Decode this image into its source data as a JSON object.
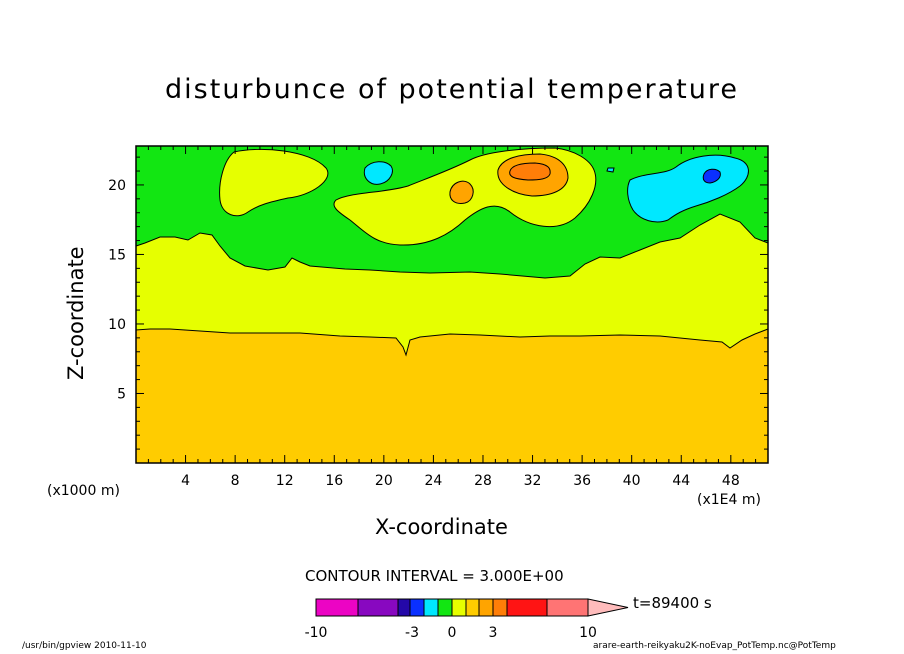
{
  "chart_data": {
    "type": "heatmap",
    "title": "disturbunce of potential temperature",
    "xlabel": "X-coordinate",
    "ylabel": "Z-coordinate",
    "x_unit_left": "(x1000 m)",
    "x_unit_right": "(x1E4 m)",
    "xlim": [
      0,
      51
    ],
    "ylim": [
      0,
      22.8
    ],
    "x_ticks": [
      "4",
      "8",
      "12",
      "16",
      "20",
      "24",
      "28",
      "32",
      "36",
      "40",
      "44",
      "48"
    ],
    "y_ticks": [
      "5",
      "10",
      "15",
      "20"
    ],
    "contour_interval": "CONTOUR INTERVAL = 3.000E+00",
    "time_label": "t=89400 s",
    "colorbar": {
      "tick_labels": [
        "-10",
        "-3",
        "0",
        "3",
        "10"
      ],
      "colors": [
        "#ec04c4",
        "#8808c0",
        "#2408a8",
        "#0a30ff",
        "#00e8ff",
        "#12e612",
        "#e6ff00",
        "#ffcc00",
        "#ffa400",
        "#ff7e08",
        "#ff1414",
        "#ff7474",
        "#ffbcbc"
      ]
    },
    "regions": [
      {
        "level": "0 to 3",
        "color": "#ffcc00"
      },
      {
        "level": "-3 to 0",
        "color": "#e6ff00"
      },
      {
        "level": "-6 to -3",
        "color": "#12e612"
      },
      {
        "level": "-9 to -6",
        "color": "#00e8ff"
      },
      {
        "level": "3 to 6",
        "color": "#ffa400"
      }
    ]
  },
  "footer": {
    "left": "/usr/bin/gpview   2010-11-10",
    "right": "arare-earth-reikyaku2K-noEvap_PotTemp.nc@PotTemp"
  }
}
